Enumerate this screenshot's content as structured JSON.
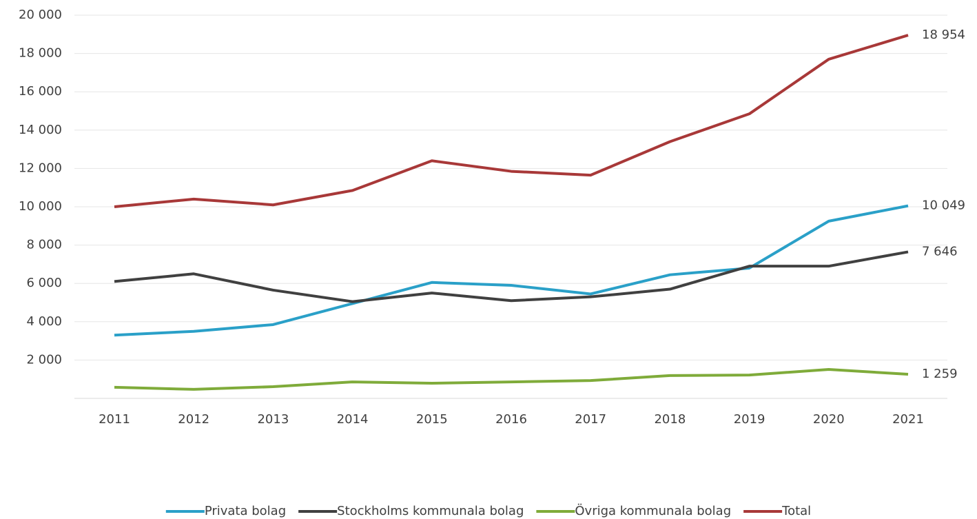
{
  "chart_data": {
    "type": "line",
    "categories": [
      "2011",
      "2012",
      "2013",
      "2014",
      "2015",
      "2016",
      "2017",
      "2018",
      "2019",
      "2020",
      "2021"
    ],
    "series": [
      {
        "name": "Privata bolag",
        "color": "#2aa0c8",
        "values": [
          3300,
          3500,
          3850,
          4950,
          6050,
          5900,
          5450,
          6450,
          6800,
          9250,
          10049
        ],
        "value_labels": [
          null,
          null,
          null,
          null,
          null,
          null,
          null,
          null,
          null,
          null,
          "10 049"
        ]
      },
      {
        "name": "Stockholms kommunala bolag",
        "color": "#404040",
        "values": [
          6100,
          6500,
          5650,
          5050,
          5500,
          5100,
          5300,
          5700,
          6900,
          6900,
          7646
        ],
        "value_labels": [
          null,
          null,
          null,
          null,
          null,
          null,
          null,
          null,
          null,
          null,
          "7 646"
        ]
      },
      {
        "name": "Övriga kommunala bolag",
        "color": "#7fab3a",
        "values": [
          580,
          470,
          610,
          860,
          790,
          860,
          930,
          1190,
          1220,
          1510,
          1259
        ],
        "value_labels": [
          null,
          null,
          null,
          null,
          null,
          null,
          null,
          null,
          null,
          null,
          "1 259"
        ]
      },
      {
        "name": "Total",
        "color": "#a83838",
        "values": [
          10000,
          10400,
          10100,
          10850,
          12400,
          11850,
          11650,
          13400,
          14850,
          17700,
          18954
        ],
        "value_labels": [
          null,
          null,
          null,
          null,
          null,
          null,
          null,
          null,
          null,
          null,
          "18 954"
        ]
      }
    ],
    "ylim": [
      0,
      20000
    ],
    "yticks": [
      {
        "value": 2000,
        "label": "2 000"
      },
      {
        "value": 4000,
        "label": "4 000"
      },
      {
        "value": 6000,
        "label": "6 000"
      },
      {
        "value": 8000,
        "label": "8 000"
      },
      {
        "value": 10000,
        "label": "10 000"
      },
      {
        "value": 12000,
        "label": "12 000"
      },
      {
        "value": 14000,
        "label": "14 000"
      },
      {
        "value": 16000,
        "label": "16 000"
      },
      {
        "value": 18000,
        "label": "18 000"
      },
      {
        "value": 20000,
        "label": "20 000"
      }
    ],
    "grid": true,
    "legend": "bottom"
  }
}
